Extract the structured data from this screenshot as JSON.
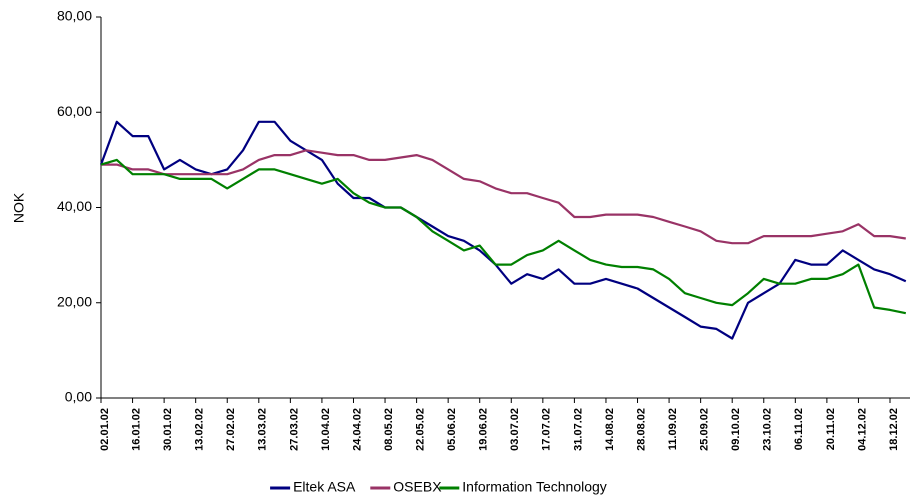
{
  "chart_data": {
    "type": "line",
    "y_label": "NOK",
    "categories": [
      "02.01.02",
      null,
      "16.01.02",
      null,
      "30.01.02",
      null,
      "13.02.02",
      null,
      "27.02.02",
      null,
      "13.03.02",
      null,
      "27.03.02",
      null,
      "10.04.02",
      null,
      "24.04.02",
      null,
      "08.05.02",
      null,
      "22.05.02",
      null,
      "05.06.02",
      null,
      "19.06.02",
      null,
      "03.07.02",
      null,
      "17.07.02",
      null,
      "31.07.02",
      null,
      "14.08.02",
      null,
      "28.08.02",
      null,
      "11.09.02",
      null,
      "25.09.02",
      null,
      "09.10.02",
      null,
      "23.10.02",
      null,
      "06.11.02",
      null,
      "20.11.02",
      null,
      "04.12.02",
      null,
      "18.12.02",
      null
    ],
    "series": [
      {
        "name": "Eltek ASA",
        "color": "#000080",
        "values": [
          49,
          58,
          55,
          55,
          48,
          50,
          48,
          47,
          48,
          52,
          58,
          58,
          54,
          52,
          50,
          45,
          42,
          42,
          40,
          40,
          38,
          36,
          34,
          33,
          31,
          28,
          24,
          26,
          25,
          27,
          24,
          24,
          25,
          24,
          23,
          21,
          19,
          17,
          15,
          14.5,
          12.5,
          20,
          22,
          24,
          29,
          28,
          28,
          31,
          29,
          27,
          26,
          24.5
        ]
      },
      {
        "name": "OSEBX",
        "color": "#993366",
        "values": [
          49,
          49,
          48,
          48,
          47,
          47,
          47,
          47,
          47,
          48,
          50,
          51,
          51,
          52,
          51.5,
          51,
          51,
          50,
          50,
          50.5,
          51,
          50,
          48,
          46,
          45.5,
          44,
          43,
          43,
          42,
          41,
          38,
          38,
          38.5,
          38.5,
          38.5,
          38,
          37,
          36,
          35,
          33,
          32.5,
          32.5,
          34,
          34,
          34,
          34,
          34.5,
          35,
          36.5,
          34,
          34,
          33.5
        ]
      },
      {
        "name": "Information Technology",
        "color": "#008000",
        "values": [
          49,
          50,
          47,
          47,
          47,
          46,
          46,
          46,
          44,
          46,
          48,
          48,
          47,
          46,
          45,
          46,
          43,
          41,
          40,
          40,
          38,
          35,
          33,
          31,
          32,
          28,
          28,
          30,
          31,
          33,
          31,
          29,
          28,
          27.5,
          27.5,
          27,
          25,
          22,
          21,
          20,
          19.5,
          22,
          25,
          24,
          24,
          25,
          25,
          26,
          28,
          19,
          18.5,
          17.8
        ]
      }
    ],
    "ylim": [
      0,
      80
    ],
    "yticks": [
      {
        "value": 0,
        "label": "0,00"
      },
      {
        "value": 20,
        "label": "20,00"
      },
      {
        "value": 40,
        "label": "40,00"
      },
      {
        "value": 60,
        "label": "60,00"
      },
      {
        "value": 80,
        "label": "80,00"
      }
    ],
    "legend": "bottom"
  }
}
